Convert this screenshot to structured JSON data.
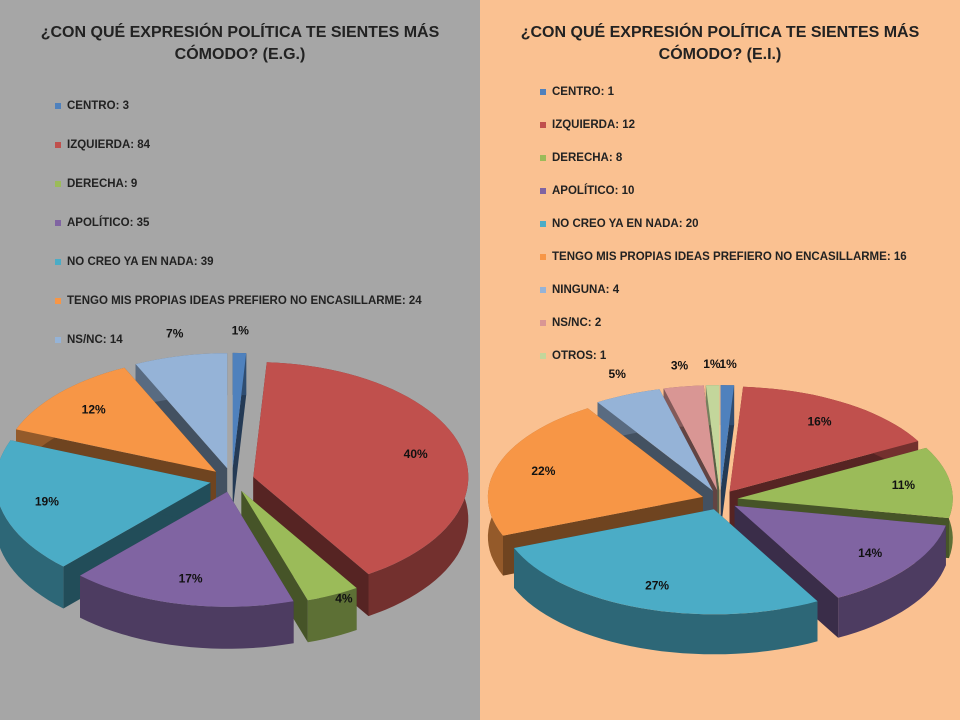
{
  "chart_data": [
    {
      "type": "pie",
      "title": "¿CON QUÉ EXPRESIÓN POLÍTICA TE SIENTES MÁS CÓMODO? (E.G.)",
      "categories": [
        "CENTRO",
        "IZQUIERDA",
        "DERECHA",
        "APOLÍTICO",
        "NO CREO YA EN NADA",
        "TENGO MIS PROPIAS IDEAS PREFIERO NO ENCASILLARME",
        "NS/NC"
      ],
      "counts": [
        3,
        84,
        9,
        35,
        39,
        24,
        14
      ],
      "values": [
        1,
        40,
        4,
        17,
        19,
        12,
        7
      ],
      "value_labels": [
        "1%",
        "40%",
        "4%",
        "17%",
        "19%",
        "12%",
        "7%"
      ],
      "colors": [
        "#4f81bd",
        "#c0504d",
        "#9bbb59",
        "#8064a2",
        "#4bacc6",
        "#f79646",
        "#95b3d7"
      ]
    },
    {
      "type": "pie",
      "title": "¿CON QUÉ EXPRESIÓN POLÍTICA TE SIENTES MÁS CÓMODO? (E.I.)",
      "categories": [
        "CENTRO",
        "IZQUIERDA",
        "DERECHA",
        "APOLÍTICO",
        "NO CREO YA EN NADA",
        "TENGO MIS PROPIAS IDEAS PREFIERO NO ENCASILLARME",
        "NINGUNA",
        "NS/NC",
        "OTROS"
      ],
      "counts": [
        1,
        12,
        8,
        10,
        20,
        16,
        4,
        2,
        1
      ],
      "values": [
        1,
        16,
        11,
        14,
        27,
        22,
        5,
        3,
        1
      ],
      "value_labels": [
        "1%",
        "16%",
        "11%",
        "14%",
        "27%",
        "22%",
        "5%",
        "3%",
        "1%"
      ],
      "colors": [
        "#4f81bd",
        "#c0504d",
        "#9bbb59",
        "#8064a2",
        "#4bacc6",
        "#f79646",
        "#95b3d7",
        "#d99694",
        "#c3d69b"
      ]
    }
  ]
}
